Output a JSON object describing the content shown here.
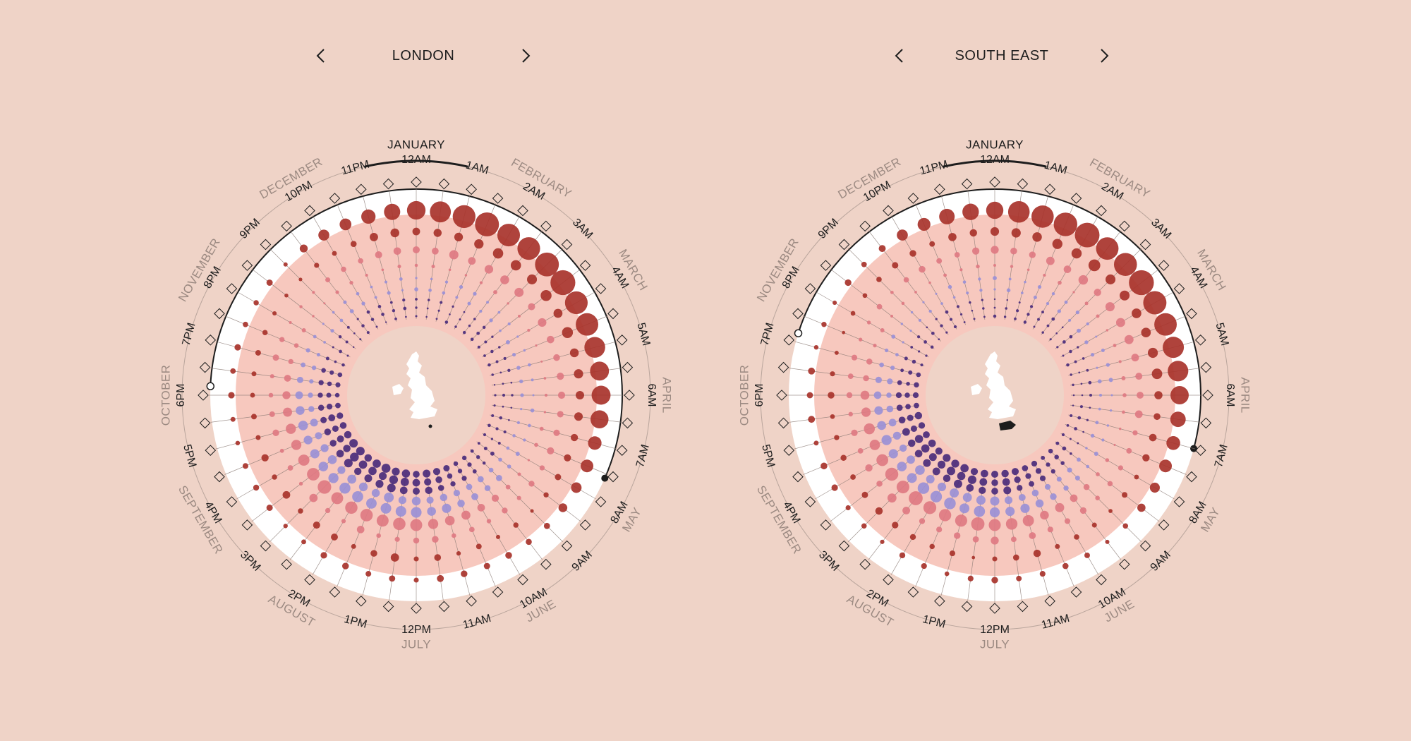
{
  "panels": [
    {
      "region": "LONDON",
      "prev_label": "previous-region",
      "next_label": "next-region"
    },
    {
      "region": "SOUTH EAST",
      "prev_label": "previous-region",
      "next_label": "next-region"
    }
  ],
  "months": [
    "JANUARY",
    "FEBRUARY",
    "MARCH",
    "APRIL",
    "MAY",
    "JUNE",
    "JULY",
    "AUGUST",
    "SEPTEMBER",
    "OCTOBER",
    "NOVEMBER",
    "DECEMBER"
  ],
  "current_month": "JANUARY",
  "hours": [
    "12AM",
    "1AM",
    "2AM",
    "3AM",
    "4AM",
    "5AM",
    "6AM",
    "7AM",
    "8AM",
    "9AM",
    "10AM",
    "11AM",
    "12PM",
    "1PM",
    "2PM",
    "3PM",
    "4PM",
    "5PM",
    "6PM",
    "7PM",
    "8PM",
    "9PM",
    "10PM",
    "11PM"
  ],
  "colors": {
    "background": "#efd3c7",
    "dark_red": "#a8332b",
    "pink": "#de7a82",
    "light_purple": "#9a90d6",
    "dark_purple": "#4b2c7c",
    "daylight_band": "#ffffff",
    "inner_disc": "#f4b6a8"
  },
  "chart_data": [
    {
      "type": "radial-bubble",
      "region": "LONDON",
      "sunrise_time": "7:35AM",
      "sunset_time": "6:10PM"
    },
    {
      "type": "radial-bubble",
      "region": "SOUTH EAST",
      "sunrise_time": "7:00AM",
      "sunset_time": "7:10PM"
    }
  ],
  "icons": {
    "prev": "chevron-left-icon",
    "next": "chevron-right-icon",
    "map": "uk-map-icon",
    "half_hour_marker": "diamond-marker-icon"
  }
}
